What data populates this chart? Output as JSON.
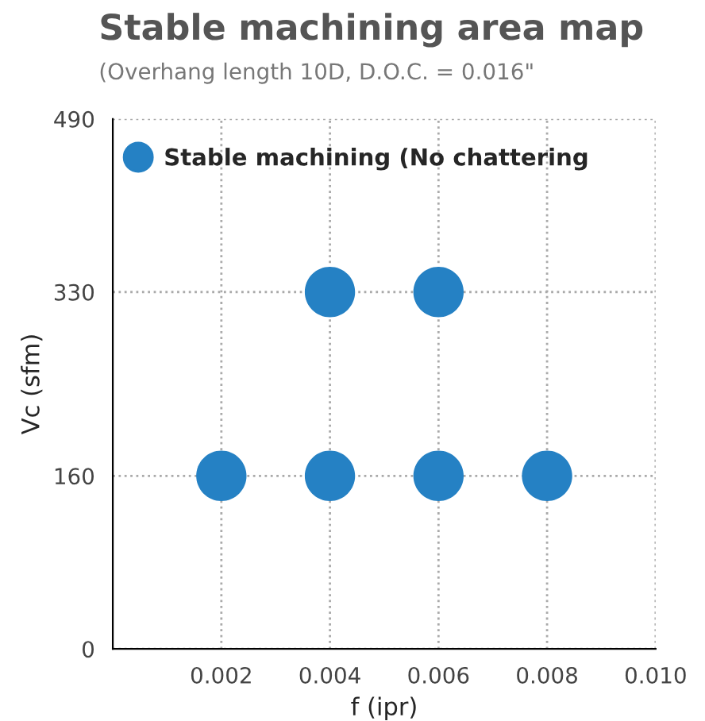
{
  "chart_data": {
    "type": "scatter",
    "title": "Stable machining area map",
    "subtitle": "(Overhang length 10D, D.O.C. = 0.016\"",
    "xlabel": "f (ipr)",
    "ylabel": "Vc (sfm)",
    "series": [
      {
        "name": "Stable machining (No chattering",
        "color": "#2581c4",
        "x": [
          0.002,
          0.004,
          0.006,
          0.008,
          0.004,
          0.006
        ],
        "values": [
          160,
          160,
          160,
          160,
          330,
          330
        ]
      }
    ],
    "xlim": [
      0,
      0.01
    ],
    "xticks": [
      0.002,
      0.004,
      0.006,
      0.008,
      {
        "value": 0.01,
        "label": "0.010"
      }
    ],
    "ylim": [
      0,
      490
    ],
    "yticks": [
      0,
      160,
      330,
      490
    ],
    "grid": true,
    "legend": "top left",
    "marker": "circle"
  }
}
